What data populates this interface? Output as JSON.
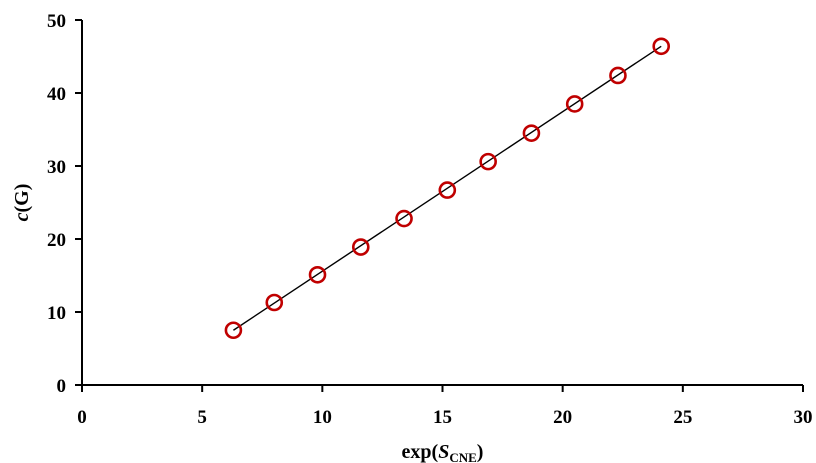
{
  "chart_data": {
    "type": "scatter",
    "title": "",
    "xlabel": {
      "prefix": "exp(",
      "italic": "S",
      "subscript": "CNE",
      "suffix": ")"
    },
    "ylabel": {
      "italic": "c",
      "suffix": "(G)"
    },
    "xlim": [
      0,
      30
    ],
    "ylim": [
      0,
      50
    ],
    "xticks": [
      0,
      5,
      10,
      15,
      20,
      25,
      30
    ],
    "yticks": [
      0,
      10,
      20,
      30,
      40,
      50
    ],
    "grid": false,
    "legend": "none",
    "series": [
      {
        "marker": "open-circle",
        "color": "#c00000",
        "points": [
          {
            "x": 6.3,
            "y": 7.5
          },
          {
            "x": 8.0,
            "y": 11.3
          },
          {
            "x": 9.8,
            "y": 15.1
          },
          {
            "x": 11.6,
            "y": 18.9
          },
          {
            "x": 13.4,
            "y": 22.8
          },
          {
            "x": 15.2,
            "y": 26.7
          },
          {
            "x": 16.9,
            "y": 30.6
          },
          {
            "x": 18.7,
            "y": 34.5
          },
          {
            "x": 20.5,
            "y": 38.5
          },
          {
            "x": 22.3,
            "y": 42.4
          },
          {
            "x": 24.1,
            "y": 46.4
          }
        ]
      }
    ],
    "fit_line": {
      "color": "#000000",
      "from": {
        "x": 6.3,
        "y": 7.5
      },
      "to": {
        "x": 24.1,
        "y": 46.4
      }
    }
  }
}
